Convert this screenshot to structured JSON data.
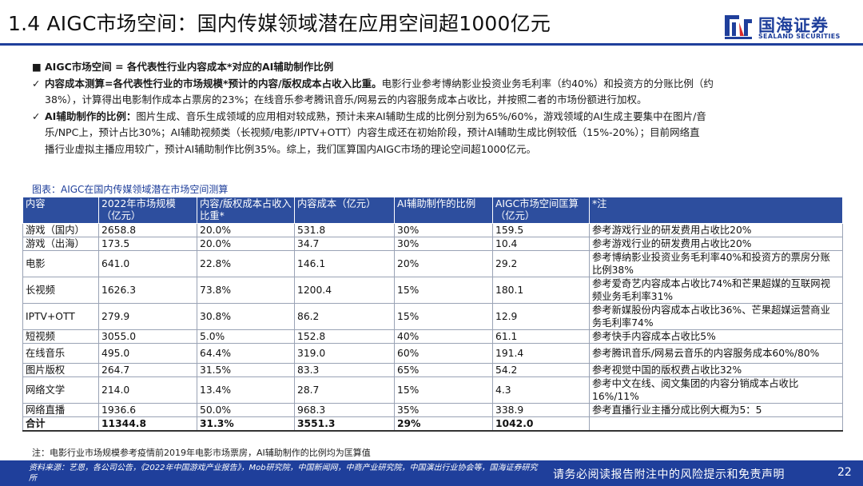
{
  "header": {
    "title": "1.4 AIGC市场空间：国内传媒领域潜在应用空间超1000亿元",
    "brand_cn": "国海证券",
    "brand_en": "SEALAND SECURITIES",
    "brand_color": "#1f3f9b"
  },
  "bullets": {
    "b1_mark": "■",
    "b1": "AIGC市场空间 = 各代表性行业内容成本*对应的AI辅助制作比例",
    "b2_mark": "✓",
    "b2_bold": "内容成本测算=各代表性行业的市场规模*预计的内容/版权成本占收入比重。",
    "b2_l1": "电影行业参考博纳影业投资业务毛利率（约40%）和投资方的分账比例（约",
    "b2_l2": "38%），计算得出电影制作成本占票房的23%；在线音乐参考腾讯音乐/网易云的内容服务成本占收比，并按照二者的市场份额进行加权。",
    "b3_mark": "✓",
    "b3_bold": "AI辅助制作的比例：",
    "b3_l1": "图片生成、音乐生成领域的应用相对较成熟，预计未来AI辅助生成的比例分别为65%/60%，游戏领域的AI生成主要集中在图片/音",
    "b3_l2": "乐/NPC上，预计占比30%；AI辅助视频类（长视频/电影/IPTV+OTT）内容生成还在初始阶段，预计AI辅助生成比例较低（15%-20%）；目前网络直",
    "b3_l3": "播行业虚拟主播应用较广，预计AI辅助制作比例35%。综上，我们匡算国内AIGC市场的理论空间超1000亿元。"
  },
  "figure_title": "图表：AIGC在国内传媒领域潜在市场空间测算",
  "table": {
    "headers": [
      "内容",
      "2022年市场规模（亿元）",
      "内容/版权成本占收入比重*",
      "内容成本（亿元）",
      "AI辅助制作的比例",
      "AIGC市场空间匡算（亿元）",
      "*注"
    ],
    "rows": [
      [
        "游戏（国内）",
        "2658.8",
        "20.0%",
        "531.8",
        "30%",
        "159.5",
        "参考游戏行业的研发费用占收比20%"
      ],
      [
        "游戏（出海）",
        "173.5",
        "20.0%",
        "34.7",
        "30%",
        "10.4",
        "参考游戏行业的研发费用占收比20%"
      ],
      [
        "电影",
        "641.0",
        "22.8%",
        "146.1",
        "20%",
        "29.2",
        "参考博纳影业投资业务毛利率40%和投资方的票房分账比例38%"
      ],
      [
        "长视频",
        "1626.3",
        "73.8%",
        "1200.4",
        "15%",
        "180.1",
        "参考爱奇艺内容成本占收比74%和芒果超媒的互联网视频业务毛利率31%"
      ],
      [
        "IPTV+OTT",
        "279.9",
        "30.8%",
        "86.2",
        "15%",
        "12.9",
        "参考新媒股份内容成本占收比36%、芒果超媒运营商业务毛利率74%"
      ],
      [
        "短视频",
        "3055.0",
        "5.0%",
        "152.8",
        "40%",
        "61.1",
        "参考快手内容成本占收比5%"
      ],
      [
        "在线音乐",
        "495.0",
        "64.4%",
        "319.0",
        "60%",
        "191.4",
        "参考腾讯音乐/网易云音乐的内容服务成本60%/80%"
      ],
      [
        "图片版权",
        "264.7",
        "31.5%",
        "83.3",
        "65%",
        "54.2",
        "参考视觉中国的版权费占收比32%"
      ],
      [
        "网络文学",
        "214.0",
        "13.4%",
        "28.7",
        "15%",
        "4.3",
        "参考中文在线、阅文集团的内容分销成本占收比16%/11%"
      ],
      [
        "网络直播",
        "1936.6",
        "50.0%",
        "968.3",
        "35%",
        "338.9",
        "参考直播行业主播分成比例大概为5：5"
      ]
    ],
    "total": [
      "合计",
      "11344.8",
      "31.3%",
      "3551.3",
      "29%",
      "1042.0",
      ""
    ],
    "header_color": "#2d4e9e"
  },
  "note": "注：电影行业市场规模参考疫情前2019年电影市场票房，AI辅助制作的比例均为匡算值",
  "footer": {
    "source": "资料来源：艺恩，各公司公告，《2022年中国游戏产业报告》，Mob研究院，中国新闻网，中商产业研究院，中国演出行业协会等，国海证券研究所",
    "disclaimer": "请务必阅读报告附注中的风险提示和免责声明",
    "page_number": "22"
  }
}
